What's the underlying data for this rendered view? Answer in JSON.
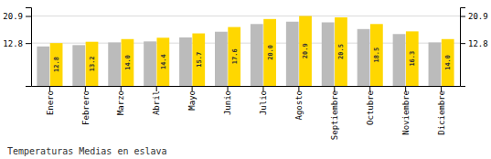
{
  "chart_data": {
    "type": "bar",
    "title": "Temperaturas Medias en eslava",
    "categories": [
      "Enero",
      "Febrero",
      "Marzo",
      "Abril",
      "Mayo",
      "Junio",
      "Julio",
      "Agosto",
      "Septiembre",
      "Octubre",
      "Noviembre",
      "Diciembre"
    ],
    "series": [
      {
        "color": "#BBBBBB",
        "values": [
          11.8,
          12.2,
          13.0,
          13.3,
          14.5,
          16.2,
          18.5,
          19.2,
          19.0,
          17.0,
          15.5,
          13.0
        ]
      },
      {
        "color": "#FFD700",
        "values": [
          12.8,
          13.2,
          14.0,
          14.4,
          15.7,
          17.6,
          20.0,
          20.9,
          20.5,
          18.5,
          16.3,
          14.0
        ],
        "value_labels": [
          "12.8",
          "13.2",
          "14.0",
          "14.4",
          "15.7",
          "17.6",
          "20.0",
          "20.9",
          "20.5",
          "18.5",
          "16.3",
          "14.0"
        ],
        "data_labels": true
      }
    ],
    "ylim": [
      0.0,
      23.5
    ],
    "yticks": [
      12.8,
      20.9
    ],
    "grid": true
  }
}
